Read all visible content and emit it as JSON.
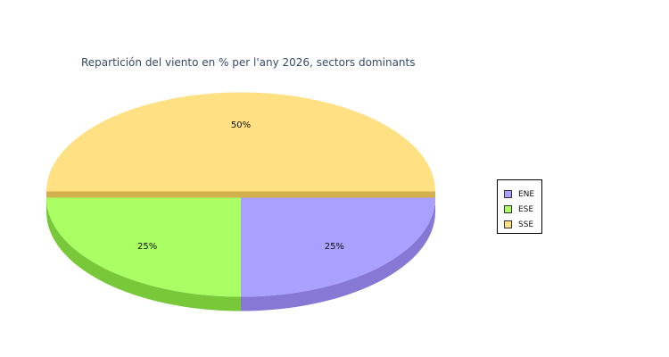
{
  "chart_data": {
    "type": "pie",
    "style": "3d-exploded",
    "title": "Repartición del viento en % per l'any 2026, sectors dominants",
    "categories": [
      "ENE",
      "ESE",
      "SSE"
    ],
    "values": [
      25,
      25,
      50
    ],
    "labels": [
      "25%",
      "25%",
      "50%"
    ],
    "colors": {
      "top": [
        "#aaa0ff",
        "#a9ff63",
        "#ffe082"
      ],
      "side": [
        "#8878d6",
        "#78c83a",
        "#d4b04e"
      ]
    },
    "legend": {
      "position": "right",
      "entries": [
        "ENE",
        "ESE",
        "SSE"
      ]
    }
  }
}
